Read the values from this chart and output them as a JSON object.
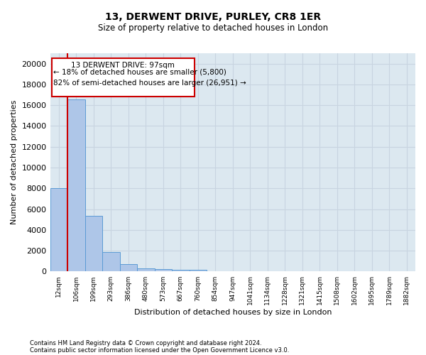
{
  "title": "13, DERWENT DRIVE, PURLEY, CR8 1ER",
  "subtitle": "Size of property relative to detached houses in London",
  "xlabel": "Distribution of detached houses by size in London",
  "ylabel": "Number of detached properties",
  "footnote1": "Contains HM Land Registry data © Crown copyright and database right 2024.",
  "footnote2": "Contains public sector information licensed under the Open Government Licence v3.0.",
  "annotation_line1": "13 DERWENT DRIVE: 97sqm",
  "annotation_line2": "← 18% of detached houses are smaller (5,800)",
  "annotation_line3": "82% of semi-detached houses are larger (26,951) →",
  "bar_labels": [
    "12sqm",
    "106sqm",
    "199sqm",
    "293sqm",
    "386sqm",
    "480sqm",
    "573sqm",
    "667sqm",
    "760sqm",
    "854sqm",
    "947sqm",
    "1041sqm",
    "1134sqm",
    "1228sqm",
    "1321sqm",
    "1415sqm",
    "1508sqm",
    "1602sqm",
    "1695sqm",
    "1789sqm",
    "1882sqm"
  ],
  "bar_values": [
    8050,
    16550,
    5350,
    1850,
    700,
    330,
    220,
    200,
    170,
    0,
    0,
    0,
    0,
    0,
    0,
    0,
    0,
    0,
    0,
    0,
    0
  ],
  "bar_color": "#aec6e8",
  "bar_edge_color": "#5b9bd5",
  "vline_color": "#cc0000",
  "annotation_box_color": "#cc0000",
  "ylim": [
    0,
    21000
  ],
  "yticks": [
    0,
    2000,
    4000,
    6000,
    8000,
    10000,
    12000,
    14000,
    16000,
    18000,
    20000
  ],
  "grid_color": "#c8d4e0",
  "bg_color": "#dce8f0"
}
